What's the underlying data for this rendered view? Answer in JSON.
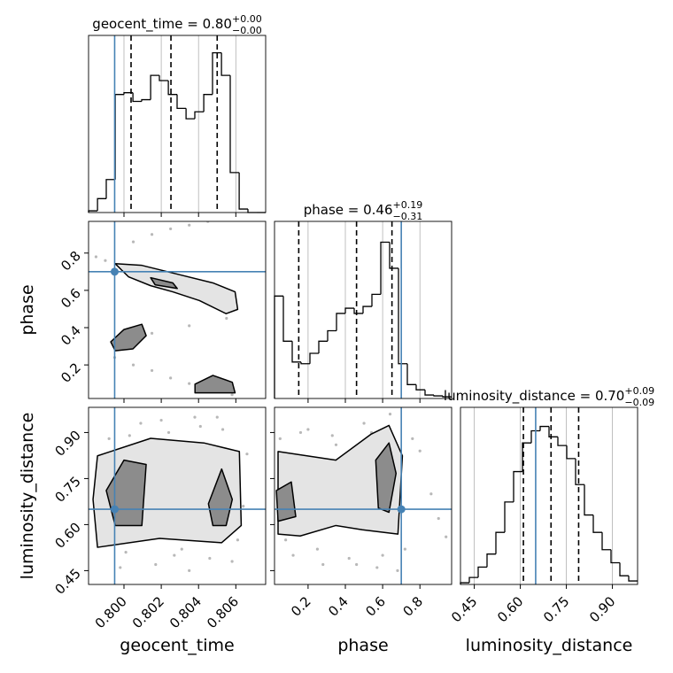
{
  "chart_data": {
    "type": "corner",
    "hist_ylim": [
      0,
      1.02
    ],
    "colors": {
      "truth": "#4682b4",
      "hist": "#000000",
      "points": "#9a9a9a",
      "contour_outer": "#e4e4e4",
      "contour_inner": "#8c8c8c"
    },
    "parameters": [
      {
        "label": "geocent_time",
        "title": {
          "text": "geocent_time = 0.80",
          "sup": "+0.00",
          "sub": "−0.00"
        },
        "lim": [
          0.7981,
          0.8076
        ],
        "ticks": [
          {
            "value": 0.8,
            "label": "0.800"
          },
          {
            "value": 0.802,
            "label": "0.802"
          },
          {
            "value": 0.804,
            "label": "0.804"
          },
          {
            "value": 0.806,
            "label": "0.806"
          }
        ],
        "truth": 0.7995,
        "quantiles": [
          0.80038,
          0.80252,
          0.805
        ],
        "bins": [
          0.7981,
          0.79858,
          0.79905,
          0.79953,
          0.8,
          0.80048,
          0.80095,
          0.80143,
          0.8019,
          0.80238,
          0.80285,
          0.80333,
          0.8038,
          0.80428,
          0.80475,
          0.80523,
          0.8057,
          0.80618,
          0.80665,
          0.80713,
          0.8076
        ],
        "counts": [
          0.01,
          0.08,
          0.19,
          0.68,
          0.69,
          0.64,
          0.65,
          0.79,
          0.76,
          0.68,
          0.6,
          0.54,
          0.58,
          0.68,
          0.92,
          0.79,
          0.23,
          0.02,
          0.0,
          0.0
        ]
      },
      {
        "label": "phase",
        "title": {
          "text": "phase = 0.46",
          "sup": "+0.19",
          "sub": "−0.31"
        },
        "lim": [
          0.02,
          0.97
        ],
        "ticks": [
          0.2,
          0.4,
          0.6,
          0.8
        ],
        "truth": 0.7,
        "quantiles": [
          0.15,
          0.46,
          0.65
        ],
        "bins": [
          0.02,
          0.0675,
          0.115,
          0.1625,
          0.21,
          0.2575,
          0.305,
          0.3525,
          0.4,
          0.4475,
          0.495,
          0.5425,
          0.59,
          0.6375,
          0.685,
          0.7325,
          0.78,
          0.8275,
          0.875,
          0.9225,
          0.97
        ],
        "counts": [
          0.59,
          0.33,
          0.21,
          0.2,
          0.26,
          0.33,
          0.39,
          0.49,
          0.52,
          0.49,
          0.53,
          0.6,
          0.9,
          0.75,
          0.2,
          0.08,
          0.05,
          0.02,
          0.015,
          0.01
        ]
      },
      {
        "label": "luminosity_distance",
        "title": {
          "text": "luminosity_distance = 0.70",
          "sup": "+0.09",
          "sub": "−0.09"
        },
        "lim": [
          0.405,
          0.982
        ],
        "ticks": [
          0.45,
          {
            "value": 0.6,
            "label": "0.60"
          },
          0.75,
          {
            "value": 0.9,
            "label": "0.90"
          }
        ],
        "truth": 0.65,
        "quantiles": [
          0.61,
          0.7,
          0.79
        ],
        "bins": [
          0.405,
          0.43385,
          0.4627,
          0.49155,
          0.5204,
          0.54925,
          0.5781,
          0.60695,
          0.6358,
          0.66465,
          0.6935,
          0.72235,
          0.7512,
          0.78005,
          0.8089,
          0.83775,
          0.8666,
          0.89545,
          0.9243,
          0.95315,
          0.982
        ],
        "counts": [
          0.01,
          0.04,
          0.1,
          0.175,
          0.3,
          0.475,
          0.65,
          0.815,
          0.885,
          0.91,
          0.85,
          0.8,
          0.725,
          0.575,
          0.4,
          0.3,
          0.2,
          0.125,
          0.05,
          0.02
        ]
      }
    ],
    "pairs": [
      {
        "points": {
          "x": [
            0.8005,
            0.8015,
            0.8025,
            0.8035,
            0.8045,
            0.8055,
            0.7985,
            0.799,
            0.8,
            0.8045,
            0.806,
            0.8055,
            0.8035,
            0.8015,
            0.7995,
            0.7995,
            0.8005,
            0.8015,
            0.8025,
            0.8035,
            0.8045,
            0.8058
          ],
          "y": [
            0.86,
            0.9,
            0.93,
            0.95,
            0.97,
            0.98,
            0.78,
            0.76,
            0.72,
            0.55,
            0.5,
            0.45,
            0.41,
            0.37,
            0.33,
            0.24,
            0.2,
            0.17,
            0.13,
            0.1,
            0.07,
            0.04
          ]
        },
        "contours": [
          {
            "x": [
              0.79953,
              0.80096,
              0.80286,
              0.80477,
              0.80596,
              0.8061,
              0.80548,
              0.80405,
              0.80262,
              0.80143,
              0.80024
            ],
            "y": [
              0.743,
              0.734,
              0.687,
              0.64,
              0.592,
              0.498,
              0.475,
              0.545,
              0.592,
              0.625,
              0.673
            ]
          },
          {
            "x": [
              0.79929,
              0.8,
              0.80096,
              0.80119,
              0.80048,
              0.79953
            ],
            "y": [
              0.324,
              0.39,
              0.418,
              0.357,
              0.286,
              0.276
            ]
          },
          {
            "x": [
              0.80381,
              0.80477,
              0.80581,
              0.80596,
              0.80381
            ],
            "y": [
              0.097,
              0.144,
              0.107,
              0.05,
              0.05
            ]
          },
          {
            "x": [
              0.80143,
              0.80262,
              0.80286,
              0.80167
            ],
            "y": [
              0.668,
              0.64,
              0.61,
              0.63
            ]
          }
        ]
      },
      {
        "points": {
          "x": [
            0.7986,
            0.7992,
            0.8001,
            0.8009,
            0.8017,
            0.8024,
            0.8031,
            0.8038,
            0.8046,
            0.8053,
            0.8061,
            0.8066,
            0.7989,
            0.7998,
            0.8012,
            0.8027,
            0.8041,
            0.8058,
            0.8064,
            0.8003,
            0.802,
            0.8035,
            0.805,
            0.7995
          ],
          "y": [
            0.62,
            0.88,
            0.51,
            0.93,
            0.47,
            0.9,
            0.52,
            0.95,
            0.49,
            0.91,
            0.55,
            0.83,
            0.75,
            0.46,
            0.87,
            0.5,
            0.92,
            0.48,
            0.66,
            0.89,
            0.94,
            0.45,
            0.95,
            0.58
          ]
        },
        "contours": [
          {
            "x": [
              0.79858,
              0.80143,
              0.80429,
              0.80619,
              0.80629,
              0.80524,
              0.80191,
              0.79858,
              0.79834
            ],
            "y": [
              0.824,
              0.881,
              0.866,
              0.838,
              0.597,
              0.541,
              0.555,
              0.526,
              0.682
            ]
          },
          {
            "x": [
              0.79905,
              0.8,
              0.80119,
              0.80096,
              0.79953
            ],
            "y": [
              0.711,
              0.81,
              0.796,
              0.597,
              0.597
            ]
          },
          {
            "x": [
              0.80453,
              0.80524,
              0.80581,
              0.80548,
              0.80477
            ],
            "y": [
              0.668,
              0.781,
              0.682,
              0.597,
              0.597
            ]
          }
        ]
      },
      {
        "points": {
          "x": [
            0.05,
            0.12,
            0.2,
            0.28,
            0.35,
            0.42,
            0.5,
            0.57,
            0.64,
            0.72,
            0.8,
            0.9,
            0.08,
            0.16,
            0.25,
            0.33,
            0.46,
            0.54,
            0.68,
            0.76,
            0.86,
            0.94,
            0.3,
            0.6
          ],
          "y": [
            0.88,
            0.5,
            0.91,
            0.47,
            0.86,
            0.49,
            0.93,
            0.46,
            0.96,
            0.52,
            0.84,
            0.62,
            0.55,
            0.9,
            0.52,
            0.89,
            0.47,
            0.9,
            0.45,
            0.88,
            0.7,
            0.56,
            0.68,
            0.5
          ]
        },
        "contours": [
          {
            "x": [
              0.039,
              0.349,
              0.539,
              0.634,
              0.706,
              0.682,
              0.491,
              0.349,
              0.158,
              0.039
            ],
            "y": [
              0.838,
              0.81,
              0.895,
              0.923,
              0.824,
              0.569,
              0.583,
              0.597,
              0.563,
              0.569
            ]
          },
          {
            "x": [
              0.563,
              0.634,
              0.672,
              0.634,
              0.577
            ],
            "y": [
              0.81,
              0.866,
              0.767,
              0.64,
              0.654
            ]
          },
          {
            "x": [
              0.03,
              0.11,
              0.134,
              0.039
            ],
            "y": [
              0.711,
              0.739,
              0.626,
              0.611
            ]
          }
        ]
      }
    ]
  }
}
